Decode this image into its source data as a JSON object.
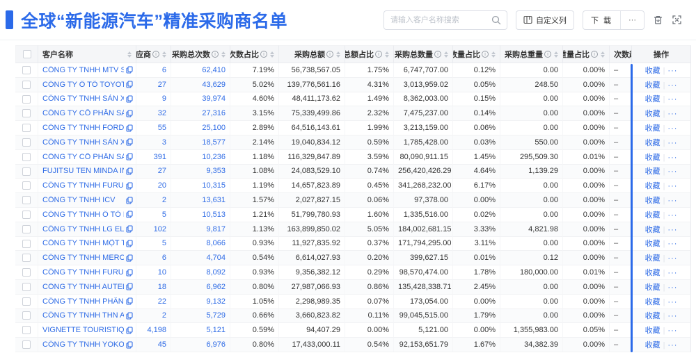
{
  "colors": {
    "accent": "#2b6ae9",
    "link": "#2e6be6",
    "text": "#333333",
    "header_bg": "#f5f6f8",
    "border": "#e9ebef",
    "row_border": "#f1f2f4",
    "zebra": "#fafbfc",
    "muted": "#8a9099"
  },
  "header": {
    "title": "全球“新能源汽车”精准采购商名单",
    "search_placeholder": "请输入客户名称搜索",
    "customize_button": "自定义列",
    "download_button": "下 载",
    "more_button": "···",
    "icons": {
      "search": "magnifier",
      "customize": "columns-grid",
      "download_more": "horizontal-ellipsis",
      "trash": "trash-can",
      "fullscreen": "expand-corners"
    }
  },
  "table": {
    "columns": [
      {
        "id": "name",
        "label": "客户名称",
        "info": false,
        "sort": true
      },
      {
        "id": "supplier",
        "label": "供应商",
        "info": true,
        "sort": true
      },
      {
        "id": "purchase-count",
        "label": "采购总次数",
        "info": true,
        "sort": true
      },
      {
        "id": "count-pct",
        "label": "次数占比",
        "info": true,
        "sort": true
      },
      {
        "id": "purchase-amount",
        "label": "采购总额",
        "info": true,
        "sort": true
      },
      {
        "id": "amount-pct",
        "label": "总额占比",
        "info": true,
        "sort": true
      },
      {
        "id": "purchase-qty",
        "label": "采购总数量",
        "info": true,
        "sort": true
      },
      {
        "id": "qty-pct",
        "label": "数量占比",
        "info": true,
        "sort": true
      },
      {
        "id": "purchase-weight",
        "label": "采购总重量",
        "info": true,
        "sort": true
      },
      {
        "id": "weight-pct",
        "label": "重量占比",
        "info": true,
        "sort": true
      },
      {
        "id": "count-trend",
        "label": "次数趋势",
        "info": false,
        "sort": false
      },
      {
        "id": "actions",
        "label": "操作",
        "info": false,
        "sort": false
      }
    ],
    "trend_placeholder": "–",
    "actions": {
      "favorite": "收藏",
      "more": "···"
    },
    "rows": [
      {
        "name": "CÔNG TY TNHH MTV SẢN XUẤ...",
        "supplier": "6",
        "count": "62,410",
        "count_pct": "7.19%",
        "amount": "56,738,567.05",
        "amount_pct": "1.75%",
        "qty": "6,747,707.00",
        "qty_pct": "0.12%",
        "weight": "0.00",
        "weight_pct": "0.00%"
      },
      {
        "name": "CÔNG TY Ô TÔ TOYOTA VIỆT ...",
        "supplier": "27",
        "count": "43,629",
        "count_pct": "5.02%",
        "amount": "139,776,561.16",
        "amount_pct": "4.31%",
        "qty": "3,013,959.02",
        "qty_pct": "0.05%",
        "weight": "248.50",
        "weight_pct": "0.00%"
      },
      {
        "name": "CÔNG TY TNHH SẢN XUẤT VÀ ...",
        "supplier": "9",
        "count": "39,974",
        "count_pct": "4.60%",
        "amount": "48,411,173.62",
        "amount_pct": "1.49%",
        "qty": "8,362,003.00",
        "qty_pct": "0.15%",
        "weight": "0.00",
        "weight_pct": "0.00%"
      },
      {
        "name": "CÔNG TY CỔ PHẦN SẢN XUẤT...",
        "supplier": "32",
        "count": "27,316",
        "count_pct": "3.15%",
        "amount": "75,339,499.86",
        "amount_pct": "2.32%",
        "qty": "7,475,237.00",
        "qty_pct": "0.14%",
        "weight": "0.00",
        "weight_pct": "0.00%"
      },
      {
        "name": "CÔNG TY TNHH FORD VIỆT NAM",
        "supplier": "55",
        "count": "25,100",
        "count_pct": "2.89%",
        "amount": "64,516,143.61",
        "amount_pct": "1.99%",
        "qty": "3,213,159.00",
        "qty_pct": "0.06%",
        "weight": "0.00",
        "weight_pct": "0.00%"
      },
      {
        "name": "CÔNG TY TNHH SẢN XUẤT VÀ ...",
        "supplier": "3",
        "count": "18,577",
        "count_pct": "2.14%",
        "amount": "19,040,834.12",
        "amount_pct": "0.59%",
        "qty": "1,785,428.00",
        "qty_pct": "0.03%",
        "weight": "550.00",
        "weight_pct": "0.00%"
      },
      {
        "name": "CÔNG TY CỔ PHẦN SẢN XUẤT...",
        "supplier": "391",
        "count": "10,236",
        "count_pct": "1.18%",
        "amount": "116,329,847.89",
        "amount_pct": "3.59%",
        "qty": "80,090,911.15",
        "qty_pct": "1.45%",
        "weight": "295,509.30",
        "weight_pct": "0.01%"
      },
      {
        "name": "FUJITSU TEN MINDA INDIA PVT...",
        "supplier": "27",
        "count": "9,353",
        "count_pct": "1.08%",
        "amount": "24,083,529.10",
        "amount_pct": "0.74%",
        "qty": "256,420,426.29",
        "qty_pct": "4.64%",
        "weight": "1,139.29",
        "weight_pct": "0.00%"
      },
      {
        "name": "CÔNG TY TNHH FURUKAWA A...",
        "supplier": "20",
        "count": "10,315",
        "count_pct": "1.19%",
        "amount": "14,657,823.89",
        "amount_pct": "0.45%",
        "qty": "341,268,232.00",
        "qty_pct": "6.17%",
        "weight": "0.00",
        "weight_pct": "0.00%"
      },
      {
        "name": "CÔNG TY TNHH ICV",
        "supplier": "2",
        "count": "13,631",
        "count_pct": "1.57%",
        "amount": "2,027,827.15",
        "amount_pct": "0.06%",
        "qty": "97,378.00",
        "qty_pct": "0.00%",
        "weight": "0.00",
        "weight_pct": "0.00%"
      },
      {
        "name": "CÔNG TY TNHH Ô TÔ MITSUBI...",
        "supplier": "5",
        "count": "10,513",
        "count_pct": "1.21%",
        "amount": "51,799,780.93",
        "amount_pct": "1.60%",
        "qty": "1,335,516.00",
        "qty_pct": "0.02%",
        "weight": "0.00",
        "weight_pct": "0.00%"
      },
      {
        "name": "CÔNG TY TNHH LG ELECTRON...",
        "supplier": "102",
        "count": "9,817",
        "count_pct": "1.13%",
        "amount": "163,899,850.02",
        "amount_pct": "5.05%",
        "qty": "184,002,681.15",
        "qty_pct": "3.33%",
        "weight": "4,821.98",
        "weight_pct": "0.00%"
      },
      {
        "name": "CÔNG TY TNHH MỘT THÀNH V...",
        "supplier": "5",
        "count": "8,066",
        "count_pct": "0.93%",
        "amount": "11,927,835.92",
        "amount_pct": "0.37%",
        "qty": "171,794,295.00",
        "qty_pct": "3.11%",
        "weight": "0.00",
        "weight_pct": "0.00%"
      },
      {
        "name": "CÔNG TY TNHH MERCEDES-B...",
        "supplier": "6",
        "count": "4,704",
        "count_pct": "0.54%",
        "amount": "6,614,027.93",
        "amount_pct": "0.20%",
        "qty": "399,627.15",
        "qty_pct": "0.01%",
        "weight": "0.12",
        "weight_pct": "0.00%"
      },
      {
        "name": "CÔNG TY TNHH FURUKAWA A...",
        "supplier": "10",
        "count": "8,092",
        "count_pct": "0.93%",
        "amount": "9,356,382.12",
        "amount_pct": "0.29%",
        "qty": "98,570,474.00",
        "qty_pct": "1.78%",
        "weight": "180,000.00",
        "weight_pct": "0.01%"
      },
      {
        "name": "CÔNG TY TNHH AUTEL VIỆT N...",
        "supplier": "18",
        "count": "6,962",
        "count_pct": "0.80%",
        "amount": "27,987,066.93",
        "amount_pct": "0.86%",
        "qty": "135,428,338.71",
        "qty_pct": "2.45%",
        "weight": "0.00",
        "weight_pct": "0.00%"
      },
      {
        "name": "CÔNG TY TNHH PHÂN PHỐI T...",
        "supplier": "22",
        "count": "9,132",
        "count_pct": "1.05%",
        "amount": "2,298,989.35",
        "amount_pct": "0.07%",
        "qty": "173,054.00",
        "qty_pct": "0.00%",
        "weight": "0.00",
        "weight_pct": "0.00%"
      },
      {
        "name": "CÔNG TY TNHH THN AUTOPAR...",
        "supplier": "2",
        "count": "5,729",
        "count_pct": "0.66%",
        "amount": "3,660,823.82",
        "amount_pct": "0.11%",
        "qty": "99,045,515.00",
        "qty_pct": "1.79%",
        "weight": "0.00",
        "weight_pct": "0.00%"
      },
      {
        "name": "VIGNETTE TOURISTIQUE G UNI...",
        "supplier": "4,198",
        "count": "5,121",
        "count_pct": "0.59%",
        "amount": "94,407.29",
        "amount_pct": "0.00%",
        "qty": "5,121.00",
        "qty_pct": "0.00%",
        "weight": "1,355,983.00",
        "weight_pct": "0.05%"
      },
      {
        "name": "CÔNG TY TNHH YOKOWO VIỆT...",
        "supplier": "45",
        "count": "6,976",
        "count_pct": "0.80%",
        "amount": "17,433,000.11",
        "amount_pct": "0.54%",
        "qty": "92,153,651.79",
        "qty_pct": "1.67%",
        "weight": "34,382.39",
        "weight_pct": "0.00%"
      }
    ]
  }
}
